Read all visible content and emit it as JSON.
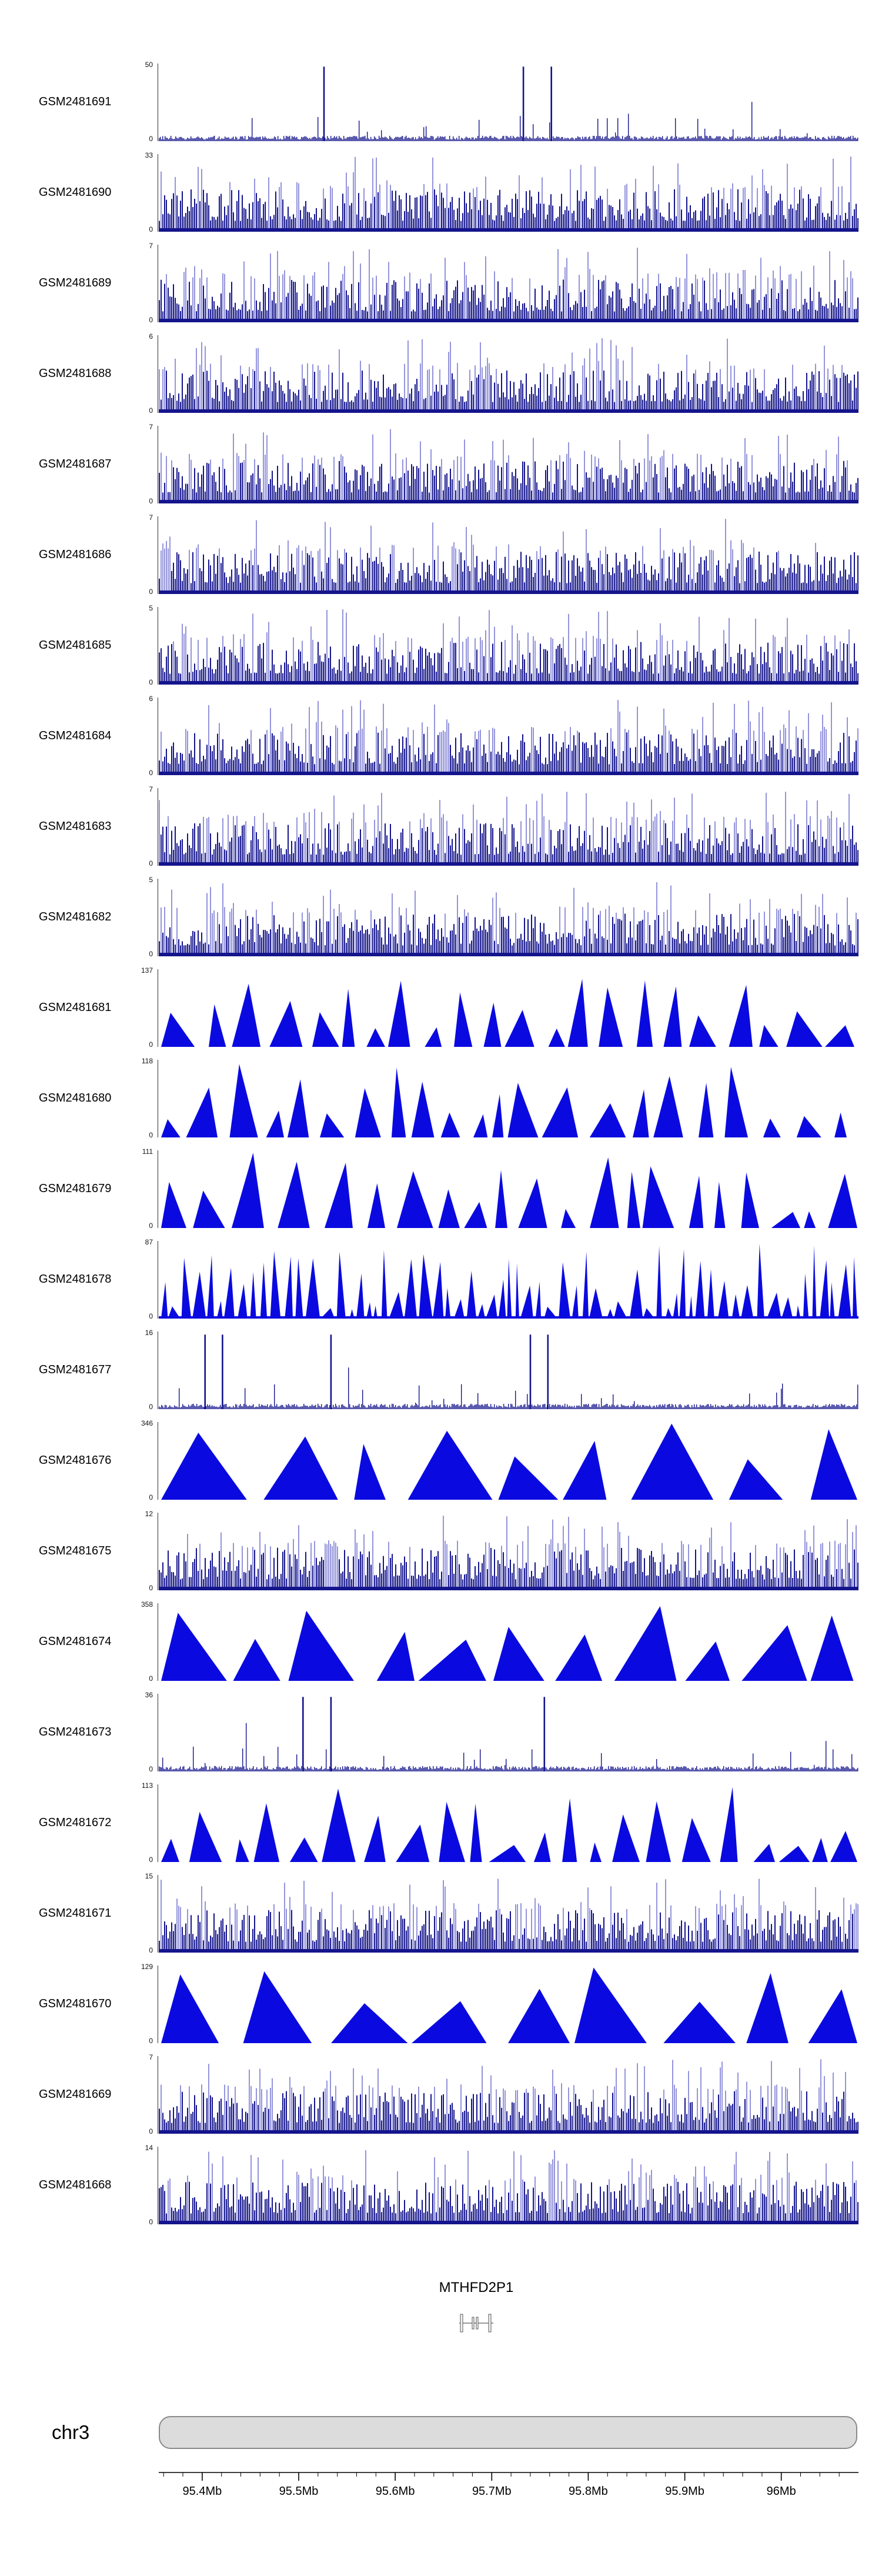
{
  "page": {
    "background": "#ffffff"
  },
  "chart_data": {
    "type": "area",
    "subtype": "genome-coverage-tracks",
    "chromosome": "chr3",
    "gene_track": {
      "gene": "MTHFD2P1"
    },
    "axis": {
      "ticks_mb": [
        95.4,
        95.5,
        95.6,
        95.7,
        95.8,
        95.9,
        96.0
      ],
      "tick_labels": [
        "95.4Mb",
        "95.5Mb",
        "95.6Mb",
        "95.7Mb",
        "95.8Mb",
        "95.9Mb",
        "96Mb"
      ]
    },
    "colors": {
      "hist_dark": "#14148c",
      "hist_light": "#7070cf",
      "peak": "#0a0ae0",
      "ideogram_fill": "#dcdcdc",
      "ideogram_border": "#8a8a8a"
    },
    "tracks": [
      {
        "name": "GSM2481691",
        "ymin": 0,
        "ymax": 50,
        "style": "spikes-sparse",
        "major_peaks": [
          0.235,
          0.52,
          0.56
        ]
      },
      {
        "name": "GSM2481690",
        "ymin": 0,
        "ymax": 33,
        "style": "hist-dense"
      },
      {
        "name": "GSM2481689",
        "ymin": 0,
        "ymax": 7,
        "style": "hist-dense"
      },
      {
        "name": "GSM2481688",
        "ymin": 0,
        "ymax": 6,
        "style": "hist-dense"
      },
      {
        "name": "GSM2481687",
        "ymin": 0,
        "ymax": 7,
        "style": "hist-dense"
      },
      {
        "name": "GSM2481686",
        "ymin": 0,
        "ymax": 7,
        "style": "hist-dense"
      },
      {
        "name": "GSM2481685",
        "ymin": 0,
        "ymax": 5,
        "style": "hist-dense"
      },
      {
        "name": "GSM2481684",
        "ymin": 0,
        "ymax": 6,
        "style": "hist-dense"
      },
      {
        "name": "GSM2481683",
        "ymin": 0,
        "ymax": 7,
        "style": "hist-dense"
      },
      {
        "name": "GSM2481682",
        "ymin": 0,
        "ymax": 5,
        "style": "hist-dense"
      },
      {
        "name": "GSM2481681",
        "ymin": 0,
        "ymax": 137,
        "style": "peaks"
      },
      {
        "name": "GSM2481680",
        "ymin": 0,
        "ymax": 118,
        "style": "peaks"
      },
      {
        "name": "GSM2481679",
        "ymin": 0,
        "ymax": 111,
        "style": "peaks"
      },
      {
        "name": "GSM2481678",
        "ymin": 0,
        "ymax": 87,
        "style": "peaks-spiky"
      },
      {
        "name": "GSM2481677",
        "ymin": 0,
        "ymax": 16,
        "style": "spikes-sparse",
        "major_peaks": [
          0.065,
          0.09,
          0.245,
          0.53,
          0.555
        ]
      },
      {
        "name": "GSM2481676",
        "ymin": 0,
        "ymax": 346,
        "style": "peaks-big"
      },
      {
        "name": "GSM2481675",
        "ymin": 0,
        "ymax": 12,
        "style": "hist-dense"
      },
      {
        "name": "GSM2481674",
        "ymin": 0,
        "ymax": 358,
        "style": "peaks-big"
      },
      {
        "name": "GSM2481673",
        "ymin": 0,
        "ymax": 36,
        "style": "spikes-sparse",
        "major_peaks": [
          0.205,
          0.245,
          0.55
        ]
      },
      {
        "name": "GSM2481672",
        "ymin": 0,
        "ymax": 113,
        "style": "peaks"
      },
      {
        "name": "GSM2481671",
        "ymin": 0,
        "ymax": 15,
        "style": "hist-dense"
      },
      {
        "name": "GSM2481670",
        "ymin": 0,
        "ymax": 129,
        "style": "peaks-big"
      },
      {
        "name": "GSM2481669",
        "ymin": 0,
        "ymax": 7,
        "style": "hist-dense"
      },
      {
        "name": "GSM2481668",
        "ymin": 0,
        "ymax": 14,
        "style": "hist-dense"
      }
    ]
  }
}
